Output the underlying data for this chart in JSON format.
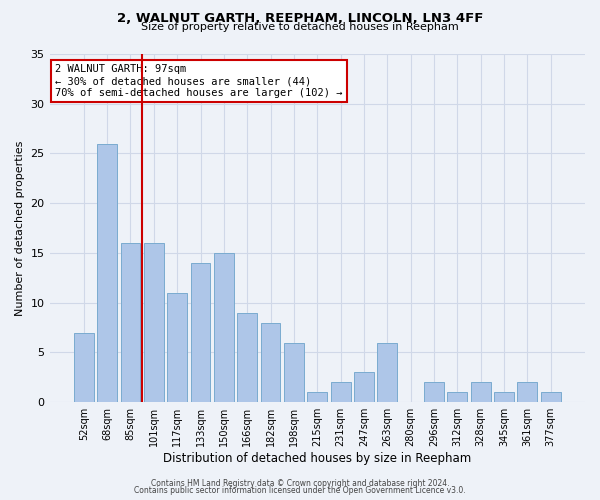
{
  "title": "2, WALNUT GARTH, REEPHAM, LINCOLN, LN3 4FF",
  "subtitle": "Size of property relative to detached houses in Reepham",
  "xlabel": "Distribution of detached houses by size in Reepham",
  "ylabel": "Number of detached properties",
  "footer_line1": "Contains HM Land Registry data © Crown copyright and database right 2024.",
  "footer_line2": "Contains public sector information licensed under the Open Government Licence v3.0.",
  "bar_labels": [
    "52sqm",
    "68sqm",
    "85sqm",
    "101sqm",
    "117sqm",
    "133sqm",
    "150sqm",
    "166sqm",
    "182sqm",
    "198sqm",
    "215sqm",
    "231sqm",
    "247sqm",
    "263sqm",
    "280sqm",
    "296sqm",
    "312sqm",
    "328sqm",
    "345sqm",
    "361sqm",
    "377sqm"
  ],
  "bar_values": [
    7,
    26,
    16,
    16,
    11,
    14,
    15,
    9,
    8,
    6,
    1,
    2,
    3,
    6,
    0,
    2,
    1,
    2,
    1,
    2,
    1
  ],
  "bar_color": "#aec6e8",
  "bar_edge_color": "#7aabd0",
  "grid_color": "#d0d8e8",
  "bg_color": "#eef2f8",
  "property_line_color": "#cc0000",
  "annotation_text": "2 WALNUT GARTH: 97sqm\n← 30% of detached houses are smaller (44)\n70% of semi-detached houses are larger (102) →",
  "annotation_box_color": "#ffffff",
  "annotation_box_edge_color": "#cc0000",
  "ylim": [
    0,
    35
  ],
  "yticks": [
    0,
    5,
    10,
    15,
    20,
    25,
    30,
    35
  ]
}
